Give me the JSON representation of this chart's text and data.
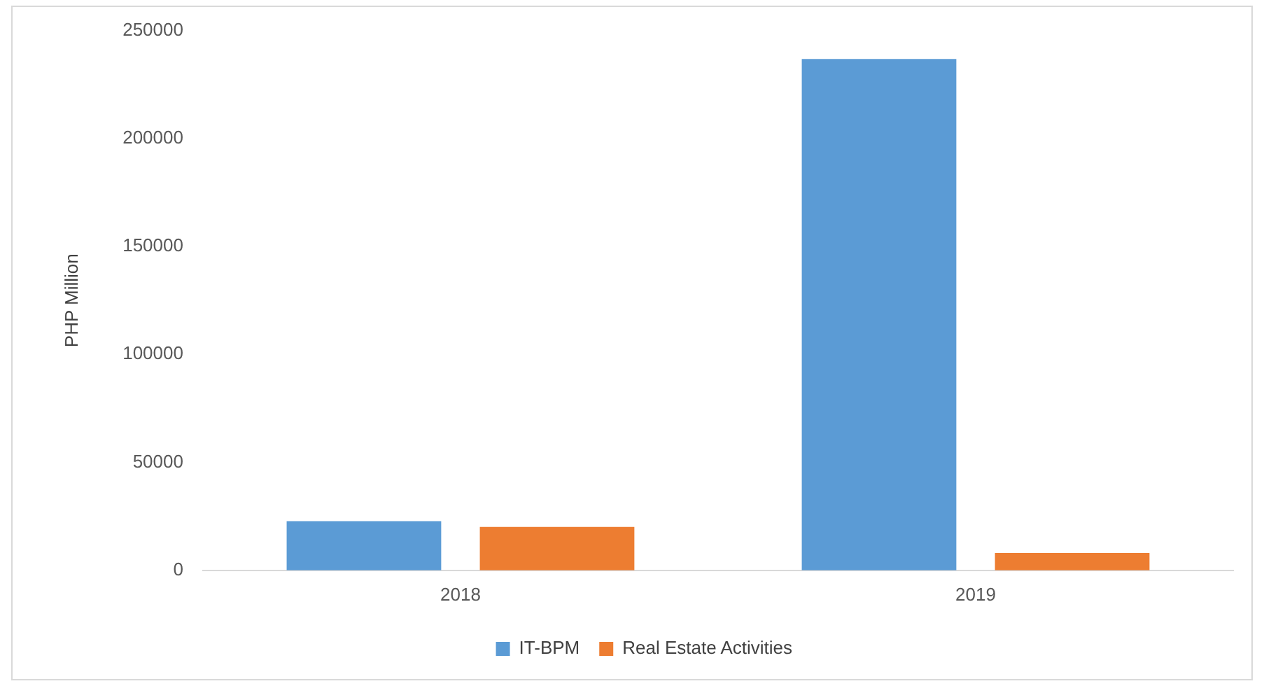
{
  "chart_data": {
    "type": "bar",
    "ylabel": "PHP Million",
    "categories": [
      "2018",
      "2019"
    ],
    "series": [
      {
        "name": "IT-BPM",
        "color": "#5b9bd5",
        "values": [
          22800,
          236800
        ]
      },
      {
        "name": "Real Estate Activities",
        "color": "#ed7d31",
        "values": [
          20100,
          8000
        ]
      }
    ],
    "ylim": [
      0,
      250000
    ],
    "yticks": [
      0,
      50000,
      100000,
      150000,
      200000,
      250000
    ],
    "grid": false,
    "legend": "bottom"
  }
}
